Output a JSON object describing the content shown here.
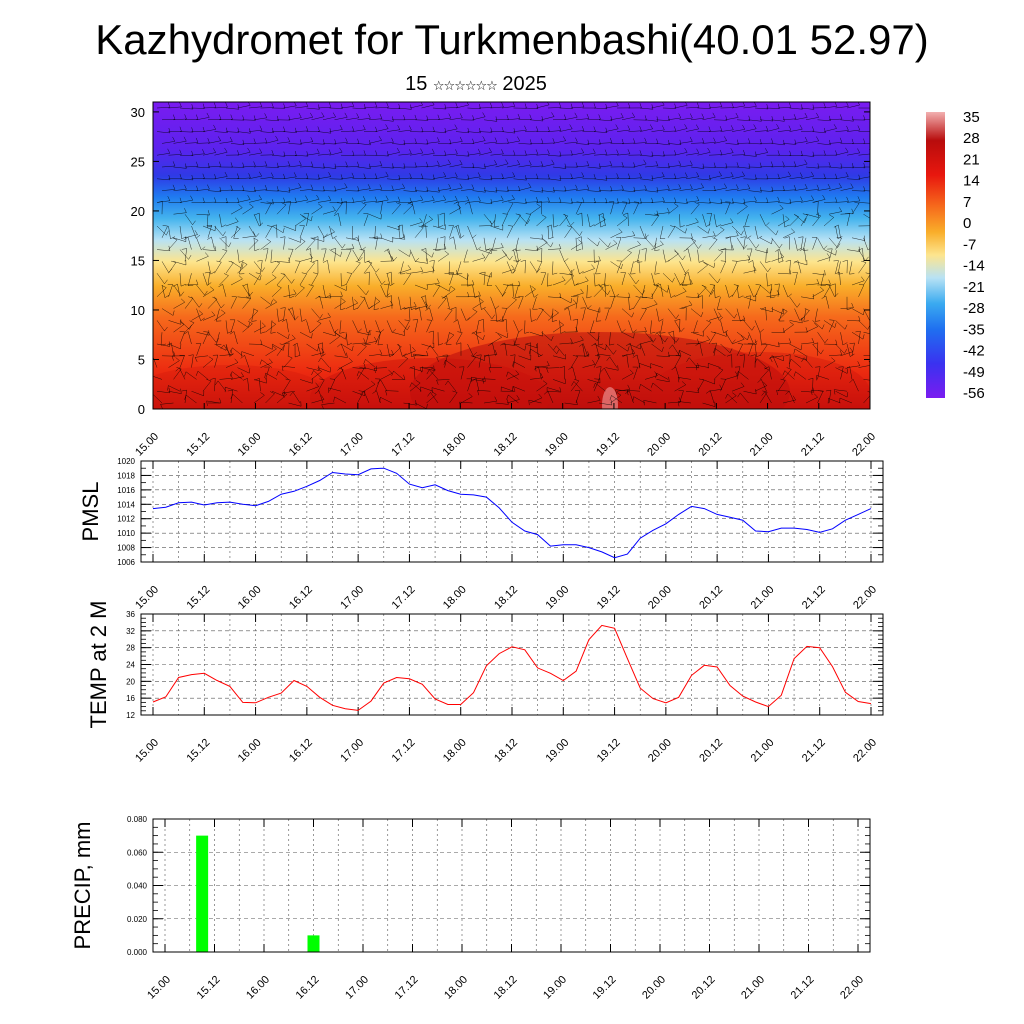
{
  "title": "Kazhydromet for Turkmenbashi(40.01 52.97)",
  "subtitle": {
    "day": "15",
    "month": "☆☆☆☆☆☆",
    "year": "2025"
  },
  "chart_data": [
    {
      "type": "heatmap",
      "name": "cross-section",
      "x_ticks": [
        "15.00",
        "15.12",
        "16.00",
        "16.12",
        "17.00",
        "17.12",
        "18.00",
        "18.12",
        "19.00",
        "19.12",
        "20.00",
        "20.12",
        "21.00",
        "21.12",
        "22.00"
      ],
      "y_ticks": [
        0,
        5,
        10,
        15,
        20,
        25,
        30
      ],
      "ylim": [
        0,
        31
      ],
      "colorbar_labels": [
        35,
        28,
        21,
        14,
        7,
        0,
        -7,
        -14,
        -21,
        -28,
        -35,
        -42,
        -49,
        -56
      ],
      "colorbar_range": [
        -60,
        38
      ],
      "colors": [
        "#7a1cf0",
        "#3a44ff",
        "#1e90ff",
        "#a9dcf2",
        "#fde28e",
        "#f9a825",
        "#f25c1a",
        "#e8170e",
        "#b80c0c",
        "#ee9a9a"
      ],
      "wind_barbs": true
    },
    {
      "type": "line",
      "ylabel": "PMSL",
      "x_ticks": [
        "15.00",
        "15.12",
        "16.00",
        "16.12",
        "17.00",
        "17.12",
        "18.00",
        "18.12",
        "19.00",
        "19.12",
        "20.00",
        "20.12",
        "21.00",
        "21.12",
        "22.00"
      ],
      "y_ticks": [
        1006,
        1008,
        1010,
        1012,
        1014,
        1016,
        1018,
        1020
      ],
      "ylim": [
        1006,
        1020
      ],
      "color": "#0000ff",
      "grid": true,
      "x": [
        0,
        3,
        6,
        9,
        12,
        15,
        18,
        21,
        24,
        27,
        30,
        33,
        36,
        39,
        42,
        45,
        48,
        51,
        54,
        57,
        60,
        63,
        66,
        69,
        72,
        75,
        78,
        81,
        84,
        87,
        90,
        93,
        96,
        99,
        102,
        105,
        108,
        111,
        114,
        117,
        120,
        123,
        126,
        129,
        132,
        135,
        138,
        141,
        144,
        147,
        150,
        153,
        156,
        159,
        162,
        165,
        168
      ],
      "values": [
        1013.4,
        1013.6,
        1014.2,
        1014.3,
        1013.9,
        1014.2,
        1014.3,
        1014.0,
        1013.8,
        1014.4,
        1015.4,
        1015.8,
        1016.5,
        1017.3,
        1018.4,
        1018.2,
        1018.1,
        1018.9,
        1019.0,
        1018.3,
        1016.8,
        1016.3,
        1016.7,
        1015.9,
        1015.4,
        1015.3,
        1015.0,
        1013.5,
        1011.5,
        1010.3,
        1009.8,
        1008.2,
        1008.4,
        1008.4,
        1008.0,
        1007.4,
        1006.6,
        1007.1,
        1009.3,
        1010.4,
        1011.3,
        1012.6,
        1013.7,
        1013.4,
        1012.6,
        1012.2,
        1011.8,
        1010.3,
        1010.2,
        1010.7,
        1010.7,
        1010.5,
        1010.1,
        1010.6,
        1011.8,
        1012.6,
        1013.4
      ]
    },
    {
      "type": "line",
      "ylabel": "TEMP at 2 M",
      "x_ticks": [
        "15.00",
        "15.12",
        "16.00",
        "16.12",
        "17.00",
        "17.12",
        "18.00",
        "18.12",
        "19.00",
        "19.12",
        "20.00",
        "20.12",
        "21.00",
        "21.12",
        "22.00"
      ],
      "y_ticks": [
        12,
        16,
        20,
        24,
        28,
        32,
        36
      ],
      "ylim": [
        12,
        36
      ],
      "color": "#ff0000",
      "grid": true,
      "x": [
        0,
        3,
        6,
        9,
        12,
        15,
        18,
        21,
        24,
        27,
        30,
        33,
        36,
        39,
        42,
        45,
        48,
        51,
        54,
        57,
        60,
        63,
        66,
        69,
        72,
        75,
        78,
        81,
        84,
        87,
        90,
        93,
        96,
        99,
        102,
        105,
        108,
        111,
        114,
        117,
        120,
        123,
        126,
        129,
        132,
        135,
        138,
        141,
        144,
        147,
        150,
        153,
        156,
        159,
        162,
        165,
        168
      ],
      "values": [
        15.1,
        16.3,
        20.9,
        21.6,
        21.9,
        20.2,
        18.8,
        15.0,
        14.9,
        16.2,
        17.2,
        20.2,
        18.8,
        16.2,
        14.3,
        13.5,
        13.1,
        15.3,
        19.6,
        20.9,
        20.6,
        19.3,
        15.8,
        14.5,
        14.5,
        17.3,
        23.7,
        26.6,
        28.2,
        27.5,
        23.2,
        21.9,
        20.2,
        22.4,
        29.9,
        33.3,
        32.6,
        25.4,
        18.4,
        15.9,
        14.9,
        16.2,
        21.4,
        23.8,
        23.4,
        19.0,
        16.5,
        15.1,
        14.0,
        16.7,
        25.4,
        28.3,
        28.0,
        23.5,
        17.4,
        15.2,
        14.7
      ]
    },
    {
      "type": "bar",
      "ylabel": "PRECIP, mm",
      "x_ticks": [
        "15.00",
        "15.12",
        "16.00",
        "16.12",
        "17.00",
        "17.12",
        "18.00",
        "18.12",
        "19.00",
        "19.12",
        "20.00",
        "20.12",
        "21.00",
        "21.12",
        "22.00"
      ],
      "y_ticks": [
        "0.000",
        "0.020",
        "0.040",
        "0.060",
        "0.080"
      ],
      "ylim": [
        0,
        0.08
      ],
      "color": "#00ff00",
      "grid": true,
      "x": [
        9,
        36
      ],
      "values": [
        0.07,
        0.01
      ]
    }
  ]
}
